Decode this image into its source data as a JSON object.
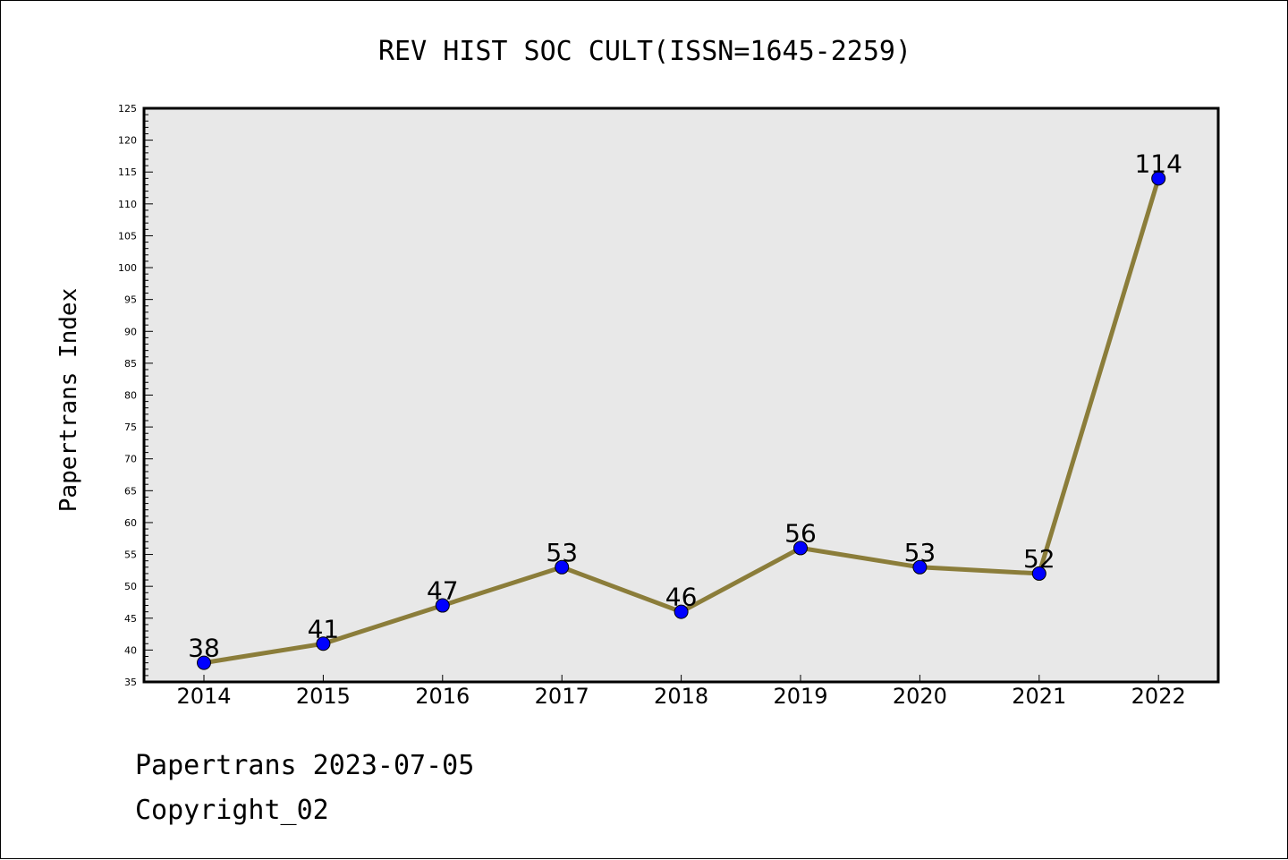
{
  "chart_data": {
    "type": "line",
    "title": "REV HIST SOC CULT(ISSN=1645-2259)",
    "ylabel": "Papertrans Index",
    "xlabel": "",
    "categories": [
      "2014",
      "2015",
      "2016",
      "2017",
      "2018",
      "2019",
      "2020",
      "2021",
      "2022"
    ],
    "values": [
      38,
      41,
      47,
      53,
      46,
      56,
      53,
      52,
      114
    ],
    "data_labels": [
      "38",
      "41",
      "47",
      "53",
      "46",
      "56",
      "53",
      "52",
      "114"
    ],
    "ylim": [
      35,
      125
    ],
    "y_major_ticks": [
      "35",
      "40",
      "45",
      "50",
      "55",
      "60",
      "65",
      "70",
      "75",
      "80",
      "85",
      "90",
      "95",
      "100",
      "105",
      "110",
      "115",
      "120",
      "125"
    ],
    "grid": false,
    "line_color": "#8B7D3A",
    "marker_color": "#0000FF",
    "plot_background": "#E8E8E8"
  },
  "footer": {
    "line1": "Papertrans 2023-07-05",
    "line2": "Copyright_02"
  }
}
